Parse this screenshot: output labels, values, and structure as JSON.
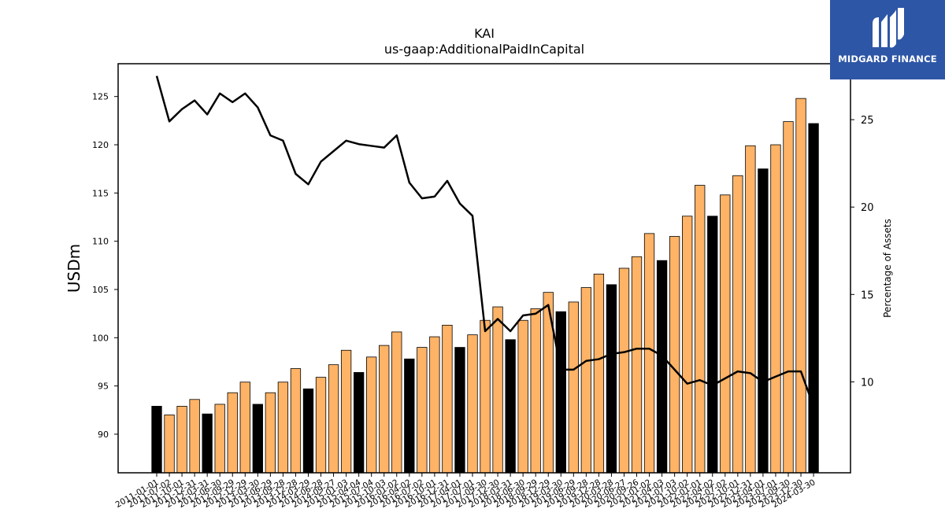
{
  "chart_data": {
    "type": "bar",
    "title": "KAI",
    "subtitle": "us-gaap:AdditionalPaidInCapital",
    "ylabel": "USDm",
    "y2label": "Percentage of Assets",
    "ylim": [
      86,
      128.4
    ],
    "y2lim": [
      4.8,
      28.2
    ],
    "yticks": [
      90,
      95,
      100,
      105,
      110,
      115,
      120,
      125
    ],
    "y2ticks": [
      10,
      15,
      20,
      25
    ],
    "categories": [
      "2011-01-01",
      "2011-07-02",
      "2011-10-01",
      "2011-12-31",
      "2012-03-31",
      "2012-06-30",
      "2012-09-29",
      "2012-12-29",
      "2013-03-30",
      "2013-06-29",
      "2013-09-28",
      "2013-12-28",
      "2014-03-29",
      "2014-06-28",
      "2014-09-27",
      "2015-01-03",
      "2015-04-04",
      "2015-07-04",
      "2015-10-03",
      "2016-01-02",
      "2016-04-02",
      "2016-07-02",
      "2016-10-01",
      "2016-12-31",
      "2017-04-01",
      "2017-07-01",
      "2017-09-30",
      "2017-12-30",
      "2018-03-31",
      "2018-06-30",
      "2018-09-29",
      "2018-12-29",
      "2019-03-30",
      "2019-06-29",
      "2019-09-28",
      "2019-12-28",
      "2020-03-28",
      "2020-06-27",
      "2020-09-26",
      "2021-01-02",
      "2021-04-03",
      "2021-07-03",
      "2021-10-02",
      "2022-01-01",
      "2022-04-02",
      "2022-07-02",
      "2022-10-01",
      "2022-12-31",
      "2023-04-01",
      "2023-07-01",
      "2023-09-30",
      "2023-12-30",
      "2024-03-30"
    ],
    "series": [
      {
        "kind": "bar",
        "values": [
          92.9,
          92.0,
          92.9,
          93.6,
          92.1,
          93.1,
          94.3,
          95.4,
          93.1,
          94.3,
          95.4,
          96.8,
          94.7,
          95.9,
          97.2,
          98.7,
          96.4,
          98.0,
          99.2,
          100.6,
          97.8,
          99.0,
          100.1,
          101.3,
          99.0,
          100.3,
          101.8,
          103.2,
          99.8,
          101.8,
          103.0,
          104.7,
          102.7,
          103.7,
          105.2,
          106.6,
          105.5,
          107.2,
          108.4,
          110.8,
          108.0,
          110.5,
          112.6,
          115.8,
          112.6,
          114.8,
          116.8,
          119.9,
          117.5,
          120.0,
          122.4,
          124.8,
          122.2
        ]
      },
      {
        "kind": "line",
        "axis": "right",
        "values": [
          27.5,
          24.9,
          25.6,
          26.1,
          25.3,
          26.5,
          26.0,
          26.5,
          25.7,
          24.1,
          23.8,
          21.9,
          21.3,
          22.6,
          23.2,
          23.8,
          23.6,
          23.5,
          23.4,
          24.1,
          21.4,
          20.5,
          20.6,
          21.5,
          20.2,
          19.5,
          12.9,
          13.6,
          12.9,
          13.8,
          13.9,
          14.4,
          10.7,
          10.7,
          11.2,
          11.3,
          11.6,
          11.7,
          11.9,
          11.9,
          11.5,
          10.7,
          9.9,
          10.1,
          9.8,
          10.2,
          10.6,
          10.5,
          10.0,
          10.3,
          10.6,
          10.6,
          8.6
        ]
      }
    ],
    "highlight_every": 4,
    "highlight_start": 0,
    "colors": {
      "bar": "#ffb366",
      "bar_highlight": "#000000",
      "line": "#000000"
    },
    "grid": false
  },
  "brand": {
    "name": "MIDGARD FINANCE",
    "icon": "midgard-logo-icon",
    "color": "#2e56a6"
  }
}
